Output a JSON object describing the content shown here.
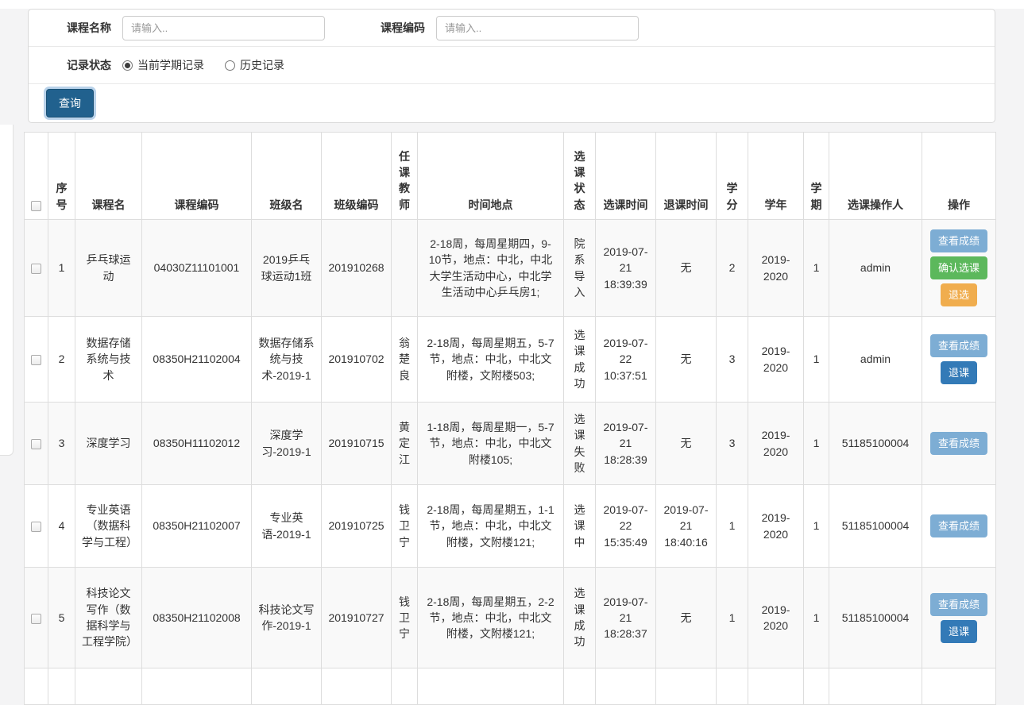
{
  "form": {
    "course_name_label": "课程名称",
    "course_name_placeholder": "请输入..",
    "course_name_value": "",
    "course_code_label": "课程编码",
    "course_code_placeholder": "请输入..",
    "course_code_value": "",
    "record_status_label": "记录状态",
    "radio_current_label": "当前学期记录",
    "radio_current_checked": true,
    "radio_history_label": "历史记录",
    "radio_history_checked": false,
    "query_button_label": "查询"
  },
  "table": {
    "headers": [
      "序号",
      "课程名",
      "课程编码",
      "班级名",
      "班级编码",
      "任课教师",
      "时间地点",
      "选课状态",
      "选课时间",
      "退课时间",
      "学分",
      "学年",
      "学期",
      "选课操作人",
      "操作"
    ],
    "rows": [
      {
        "seq": "1",
        "course_name": "乒乓球运动",
        "course_code": "04030Z11101001",
        "class_name": "2019乒乓球运动1班",
        "class_code": "201910268",
        "teacher": "",
        "time_place": "2-18周，每周星期四，9-10节，地点：中北，中北大学生活动中心，中北学生活动中心乒乓房1;",
        "status": "院系导入",
        "select_time": "2019-07-21 18:39:39",
        "drop_time": "无",
        "credit": "2",
        "year": "2019-2020",
        "term": "1",
        "operator": "admin",
        "actions": [
          {
            "type": "view",
            "label": "查看成绩"
          },
          {
            "type": "confirm",
            "label": "确认选课"
          },
          {
            "type": "deselect",
            "label": "退选"
          }
        ]
      },
      {
        "seq": "2",
        "course_name": "数据存储系统与技术",
        "course_code": "08350H21102004",
        "class_name": "数据存储系统与技术-2019-1",
        "class_code": "201910702",
        "teacher": "翁楚良",
        "time_place": "2-18周，每周星期五，5-7节，地点：中北，中北文附楼，文附楼503;",
        "status": "选课成功",
        "select_time": "2019-07-22 10:37:51",
        "drop_time": "无",
        "credit": "3",
        "year": "2019-2020",
        "term": "1",
        "operator": "admin",
        "actions": [
          {
            "type": "view",
            "label": "查看成绩"
          },
          {
            "type": "drop",
            "label": "退课"
          }
        ]
      },
      {
        "seq": "3",
        "course_name": "深度学习",
        "course_code": "08350H11102012",
        "class_name": "深度学习-2019-1",
        "class_code": "201910715",
        "teacher": "黄定江",
        "time_place": "1-18周，每周星期一，5-7节，地点：中北，中北文附楼105;",
        "status": "选课失败",
        "select_time": "2019-07-21 18:28:39",
        "drop_time": "无",
        "credit": "3",
        "year": "2019-2020",
        "term": "1",
        "operator": "51185100004",
        "actions": [
          {
            "type": "view",
            "label": "查看成绩"
          }
        ]
      },
      {
        "seq": "4",
        "course_name": "专业英语（数据科学与工程）",
        "course_code": "08350H21102007",
        "class_name": "专业英语-2019-1",
        "class_code": "201910725",
        "teacher": "钱卫宁",
        "time_place": "2-18周，每周星期五，1-1节，地点：中北，中北文附楼，文附楼121;",
        "status": "选课中",
        "select_time": "2019-07-22 15:35:49",
        "drop_time": "2019-07-21 18:40:16",
        "credit": "1",
        "year": "2019-2020",
        "term": "1",
        "operator": "51185100004",
        "actions": [
          {
            "type": "view",
            "label": "查看成绩"
          }
        ]
      },
      {
        "seq": "5",
        "course_name": "科技论文写作（数据科学与工程学院）",
        "course_code": "08350H21102008",
        "class_name": "科技论文写作-2019-1",
        "class_code": "201910727",
        "teacher": "钱卫宁",
        "time_place": "2-18周，每周星期五，2-2节，地点：中北，中北文附楼，文附楼121;",
        "status": "选课成功",
        "select_time": "2019-07-21 18:28:37",
        "drop_time": "无",
        "credit": "1",
        "year": "2019-2020",
        "term": "1",
        "operator": "51185100004",
        "actions": [
          {
            "type": "view",
            "label": "查看成绩"
          },
          {
            "type": "drop",
            "label": "退课"
          }
        ]
      }
    ]
  },
  "colors": {
    "query_button": "#21618e",
    "view_button": "#7dadd4",
    "confirm_button": "#5cb85c",
    "deselect_button": "#f0ad4e",
    "drop_button": "#337ab7"
  }
}
